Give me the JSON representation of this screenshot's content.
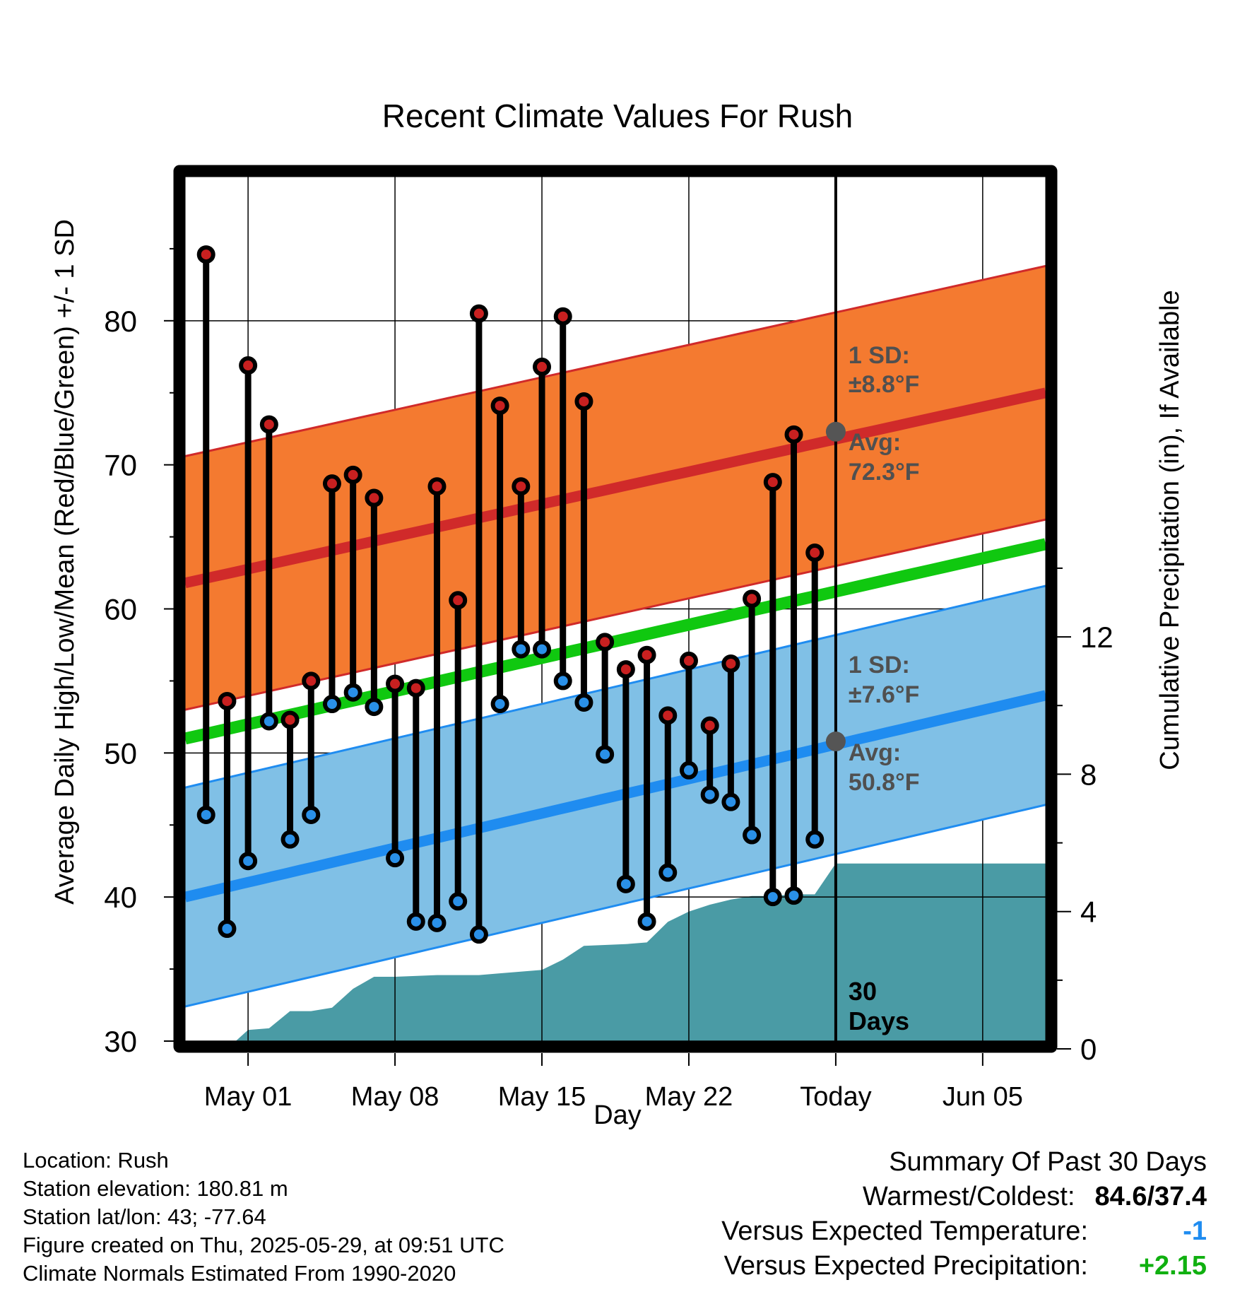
{
  "chart_data": {
    "type": "line",
    "title": "Recent Climate Values For Rush",
    "xlabel": "Day",
    "ylabel": "Average Daily High/Low/Mean (Red/Blue/Green) +/- 1 SD",
    "y2label": "Cumulative Precipitation (in), If Available",
    "xlim": [
      "2025-04-28",
      "2025-06-08"
    ],
    "ylim": [
      30,
      90
    ],
    "y2lim": [
      0,
      26
    ],
    "grid": true,
    "x_ticks": [
      "May 01",
      "May 08",
      "May 15",
      "May 22",
      "Today",
      "Jun 05"
    ],
    "x_tick_dates": [
      "2025-05-01",
      "2025-05-08",
      "2025-05-15",
      "2025-05-22",
      "2025-05-29",
      "2025-06-05"
    ],
    "y_ticks": [
      30,
      40,
      50,
      60,
      70,
      80
    ],
    "y2_ticks": [
      0,
      4,
      8,
      12
    ],
    "today": "2025-05-29",
    "today_label": [
      "30",
      "Days"
    ],
    "dates": [
      "2025-04-29",
      "2025-04-30",
      "2025-05-01",
      "2025-05-02",
      "2025-05-03",
      "2025-05-04",
      "2025-05-05",
      "2025-05-06",
      "2025-05-07",
      "2025-05-08",
      "2025-05-09",
      "2025-05-10",
      "2025-05-11",
      "2025-05-12",
      "2025-05-13",
      "2025-05-14",
      "2025-05-15",
      "2025-05-16",
      "2025-05-17",
      "2025-05-18",
      "2025-05-19",
      "2025-05-20",
      "2025-05-21",
      "2025-05-22",
      "2025-05-23",
      "2025-05-24",
      "2025-05-25",
      "2025-05-26",
      "2025-05-27",
      "2025-05-28"
    ],
    "highs": [
      84.6,
      53.6,
      76.9,
      72.8,
      52.3,
      55.0,
      68.7,
      69.3,
      67.7,
      54.8,
      54.5,
      68.5,
      60.6,
      80.5,
      74.1,
      68.5,
      76.8,
      80.3,
      74.4,
      57.7,
      55.8,
      56.8,
      52.6,
      56.4,
      51.9,
      56.2,
      60.7,
      68.8,
      72.1,
      63.9
    ],
    "lows": [
      45.7,
      37.8,
      42.5,
      52.2,
      44.0,
      45.7,
      53.4,
      54.2,
      53.2,
      42.7,
      38.3,
      38.2,
      39.7,
      37.4,
      53.4,
      57.2,
      57.2,
      55.0,
      53.5,
      49.9,
      40.9,
      38.3,
      41.7,
      48.8,
      47.1,
      46.6,
      44.3,
      40.0,
      40.1,
      44.0
    ],
    "normal_high": {
      "start": 61.8,
      "end": 75.0,
      "sd": 8.8
    },
    "normal_low": {
      "start": 40.0,
      "end": 54.0,
      "sd": 7.6
    },
    "normal_mean": {
      "start": 51.0,
      "end": 64.5
    },
    "precip_dates": [
      "2025-04-28",
      "2025-04-30",
      "2025-05-01",
      "2025-05-02",
      "2025-05-03",
      "2025-05-04",
      "2025-05-05",
      "2025-05-06",
      "2025-05-07",
      "2025-05-08",
      "2025-05-10",
      "2025-05-12",
      "2025-05-13",
      "2025-05-15",
      "2025-05-16",
      "2025-05-17",
      "2025-05-19",
      "2025-05-20",
      "2025-05-21",
      "2025-05-22",
      "2025-05-23",
      "2025-05-24",
      "2025-05-25",
      "2025-05-26",
      "2025-05-27",
      "2025-05-28",
      "2025-05-29",
      "2025-06-08"
    ],
    "precip_cumulative": [
      0.0,
      0.0,
      0.55,
      0.6,
      1.1,
      1.1,
      1.2,
      1.75,
      2.1,
      2.1,
      2.15,
      2.15,
      2.2,
      2.3,
      2.6,
      3.0,
      3.05,
      3.1,
      3.7,
      4.0,
      4.2,
      4.35,
      4.45,
      4.45,
      4.5,
      4.5,
      5.4,
      5.4
    ],
    "annotations": {
      "high_sd": [
        "1 SD:",
        "±8.8°F"
      ],
      "high_avg": [
        "Avg:",
        "72.3°F"
      ],
      "low_sd": [
        "1 SD:",
        "±7.6°F"
      ],
      "low_avg": [
        "Avg:",
        "50.8°F"
      ],
      "high_avg_value": 72.3,
      "low_avg_value": 50.8
    },
    "colors": {
      "high_band": "#f47a30",
      "high_line": "#d02a2a",
      "low_band": "#80c0e6",
      "low_line": "#1f8cf0",
      "mean_line": "#10c810",
      "precip": "#4a9ba5",
      "high_marker": "#c82020",
      "low_marker": "#2a90e8",
      "annotation_text": "#505050",
      "today_marker": "#555555"
    }
  },
  "info": {
    "location": "Location: Rush",
    "elevation": "Station elevation: 180.81 m",
    "latlon": "Station lat/lon: 43; -77.64",
    "created": "Figure created on Thu, 2025-05-29, at 09:51 UTC",
    "normals": "Climate Normals Estimated From 1990-2020"
  },
  "summary": {
    "title": "Summary Of Past 30 Days",
    "warm_cold_label": "Warmest/Coldest:",
    "warm_cold_value": "84.6/37.4",
    "temp_label": "Versus Expected Temperature:",
    "temp_value": "-1",
    "temp_color": "#1f8cf0",
    "precip_label": "Versus Expected Precipitation:",
    "precip_value": "+2.15",
    "precip_color": "#10b010"
  }
}
